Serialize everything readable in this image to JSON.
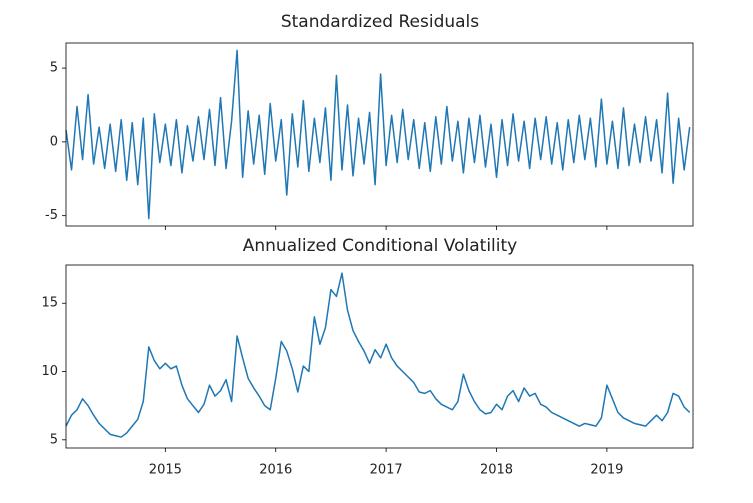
{
  "chart_data": [
    {
      "type": "line",
      "title": "Standardized Residuals",
      "color": "#1f77b4",
      "x": [
        2014.1,
        2014.15,
        2014.2,
        2014.25,
        2014.3,
        2014.35,
        2014.4,
        2014.45,
        2014.5,
        2014.55,
        2014.6,
        2014.65,
        2014.7,
        2014.75,
        2014.8,
        2014.85,
        2014.9,
        2014.95,
        2015.0,
        2015.05,
        2015.1,
        2015.15,
        2015.2,
        2015.25,
        2015.3,
        2015.35,
        2015.4,
        2015.45,
        2015.5,
        2015.55,
        2015.6,
        2015.65,
        2015.7,
        2015.75,
        2015.8,
        2015.85,
        2015.9,
        2015.95,
        2016.0,
        2016.05,
        2016.1,
        2016.15,
        2016.2,
        2016.25,
        2016.3,
        2016.35,
        2016.4,
        2016.45,
        2016.5,
        2016.55,
        2016.6,
        2016.65,
        2016.7,
        2016.75,
        2016.8,
        2016.85,
        2016.9,
        2016.95,
        2017.0,
        2017.05,
        2017.1,
        2017.15,
        2017.2,
        2017.25,
        2017.3,
        2017.35,
        2017.4,
        2017.45,
        2017.5,
        2017.55,
        2017.6,
        2017.65,
        2017.7,
        2017.75,
        2017.8,
        2017.85,
        2017.9,
        2017.95,
        2018.0,
        2018.05,
        2018.1,
        2018.15,
        2018.2,
        2018.25,
        2018.3,
        2018.35,
        2018.4,
        2018.45,
        2018.5,
        2018.55,
        2018.6,
        2018.65,
        2018.7,
        2018.75,
        2018.8,
        2018.85,
        2018.9,
        2018.95,
        2019.0,
        2019.05,
        2019.1,
        2019.15,
        2019.2,
        2019.25,
        2019.3,
        2019.35,
        2019.4,
        2019.45,
        2019.5,
        2019.55,
        2019.6,
        2019.65,
        2019.7,
        2019.75
      ],
      "values": [
        0.8,
        -1.9,
        2.4,
        -1.2,
        3.2,
        -1.5,
        1.0,
        -1.8,
        1.2,
        -2.0,
        1.5,
        -2.6,
        1.3,
        -2.9,
        1.6,
        -5.2,
        1.9,
        -1.4,
        1.2,
        -1.6,
        1.5,
        -2.1,
        1.1,
        -1.3,
        1.7,
        -1.2,
        2.2,
        -1.6,
        3.0,
        -1.8,
        1.4,
        6.2,
        -2.4,
        2.1,
        -1.5,
        1.8,
        -2.2,
        2.6,
        -1.3,
        1.5,
        -3.6,
        1.9,
        -1.7,
        2.8,
        -2.0,
        1.6,
        -1.4,
        2.3,
        -2.6,
        4.5,
        -1.9,
        2.5,
        -2.3,
        1.6,
        -1.5,
        2.0,
        -2.9,
        4.6,
        -1.6,
        1.8,
        -1.4,
        2.2,
        -1.2,
        1.5,
        -1.8,
        1.3,
        -2.0,
        1.7,
        -1.5,
        2.4,
        -1.3,
        1.4,
        -2.1,
        1.6,
        -1.4,
        1.8,
        -1.7,
        1.2,
        -2.4,
        1.5,
        -1.6,
        1.9,
        -1.3,
        1.4,
        -1.8,
        1.6,
        -1.2,
        1.7,
        -1.5,
        1.3,
        -1.9,
        1.5,
        -1.4,
        1.8,
        -1.2,
        1.6,
        -1.7,
        2.9,
        -1.5,
        1.4,
        -1.8,
        2.3,
        -1.6,
        1.2,
        -1.4,
        1.7,
        -1.3,
        1.5,
        -2.1,
        3.3,
        -2.8,
        1.6,
        -1.9,
        1.0
      ],
      "xlim": [
        2014.1,
        2019.78
      ],
      "ylim": [
        -5.7,
        6.7
      ],
      "yticks": [
        -5,
        0,
        5
      ]
    },
    {
      "type": "line",
      "title": "Annualized Conditional Volatility",
      "color": "#1f77b4",
      "x": [
        2014.1,
        2014.15,
        2014.2,
        2014.25,
        2014.3,
        2014.35,
        2014.4,
        2014.45,
        2014.5,
        2014.55,
        2014.6,
        2014.65,
        2014.7,
        2014.75,
        2014.8,
        2014.85,
        2014.9,
        2014.95,
        2015.0,
        2015.05,
        2015.1,
        2015.15,
        2015.2,
        2015.25,
        2015.3,
        2015.35,
        2015.4,
        2015.45,
        2015.5,
        2015.55,
        2015.6,
        2015.65,
        2015.7,
        2015.75,
        2015.8,
        2015.85,
        2015.9,
        2015.95,
        2016.0,
        2016.05,
        2016.1,
        2016.15,
        2016.2,
        2016.25,
        2016.3,
        2016.35,
        2016.4,
        2016.45,
        2016.5,
        2016.55,
        2016.6,
        2016.65,
        2016.7,
        2016.75,
        2016.8,
        2016.85,
        2016.9,
        2016.95,
        2017.0,
        2017.05,
        2017.1,
        2017.15,
        2017.2,
        2017.25,
        2017.3,
        2017.35,
        2017.4,
        2017.45,
        2017.5,
        2017.55,
        2017.6,
        2017.65,
        2017.7,
        2017.75,
        2017.8,
        2017.85,
        2017.9,
        2017.95,
        2018.0,
        2018.05,
        2018.1,
        2018.15,
        2018.2,
        2018.25,
        2018.3,
        2018.35,
        2018.4,
        2018.45,
        2018.5,
        2018.55,
        2018.6,
        2018.65,
        2018.7,
        2018.75,
        2018.8,
        2018.85,
        2018.9,
        2018.95,
        2019.0,
        2019.05,
        2019.1,
        2019.15,
        2019.2,
        2019.25,
        2019.3,
        2019.35,
        2019.4,
        2019.45,
        2019.5,
        2019.55,
        2019.6,
        2019.65,
        2019.7,
        2019.75
      ],
      "values": [
        6.0,
        6.8,
        7.2,
        8.0,
        7.5,
        6.8,
        6.2,
        5.8,
        5.4,
        5.3,
        5.2,
        5.5,
        6.0,
        6.5,
        7.8,
        11.8,
        10.8,
        10.2,
        10.6,
        10.2,
        10.4,
        9.0,
        8.0,
        7.5,
        7.0,
        7.6,
        9.0,
        8.2,
        8.6,
        9.4,
        7.8,
        12.6,
        11.0,
        9.5,
        8.8,
        8.2,
        7.5,
        7.2,
        9.5,
        12.2,
        11.5,
        10.2,
        8.5,
        10.4,
        10.0,
        14.0,
        12.0,
        13.2,
        16.0,
        15.5,
        17.2,
        14.5,
        13.0,
        12.2,
        11.5,
        10.6,
        11.6,
        11.0,
        12.0,
        11.0,
        10.4,
        10.0,
        9.6,
        9.2,
        8.5,
        8.4,
        8.6,
        8.0,
        7.6,
        7.4,
        7.2,
        7.8,
        9.8,
        8.6,
        7.8,
        7.2,
        6.9,
        7.0,
        7.6,
        7.2,
        8.2,
        8.6,
        7.8,
        8.8,
        8.2,
        8.4,
        7.6,
        7.4,
        7.0,
        6.8,
        6.6,
        6.4,
        6.2,
        6.0,
        6.2,
        6.1,
        6.0,
        6.6,
        9.0,
        8.0,
        7.0,
        6.6,
        6.4,
        6.2,
        6.1,
        6.0,
        6.4,
        6.8,
        6.4,
        7.0,
        8.4,
        8.2,
        7.4,
        7.0
      ],
      "xlim": [
        2014.1,
        2019.78
      ],
      "ylim": [
        4.4,
        17.8
      ],
      "yticks": [
        5,
        10,
        15
      ],
      "xticks": [
        2015,
        2016,
        2017,
        2018,
        2019
      ]
    }
  ]
}
